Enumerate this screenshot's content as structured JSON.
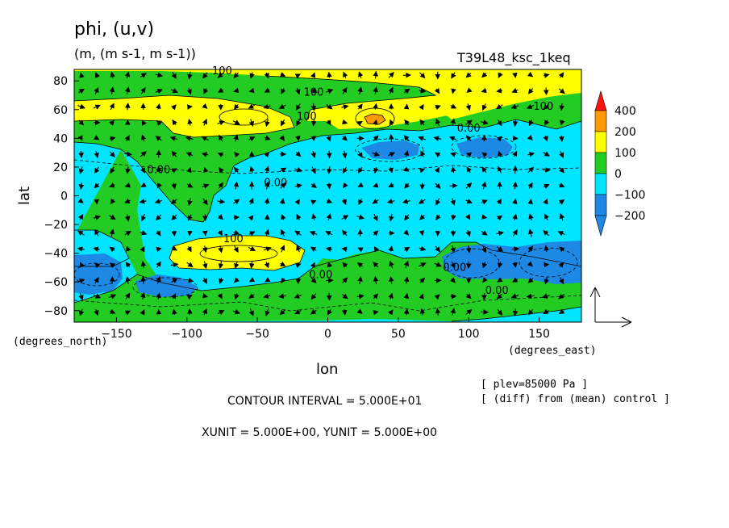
{
  "header": {
    "title": "phi, (u,v)",
    "units": "(m, (m s-1, m s-1))",
    "experiment": "T39L48_ksc_1keq"
  },
  "notes": {
    "plev": "[ plev=85000 Pa ]",
    "diff": "[ (diff) from (mean) control ]",
    "contour_interval": "CONTOUR INTERVAL = 5.000E+01",
    "vector_units": "XUNIT = 5.000E+00, YUNIT = 5.000E+00"
  },
  "colors": {
    "c_m200": "#1e88e5",
    "c_m100": "#00e5ff",
    "c_0": "#22cc22",
    "c_100": "#ffff00",
    "c_200": "#ff9900",
    "c_400": "#ff1111"
  },
  "chart_data": {
    "type": "heatmap",
    "xlabel": "lon",
    "ylabel": "lat",
    "x_units": "(degrees_east)",
    "y_units": "(degrees_north)",
    "xlim": [
      -180,
      180
    ],
    "ylim": [
      -88,
      88
    ],
    "x_ticks": [
      -150,
      -100,
      -50,
      0,
      50,
      100,
      150
    ],
    "y_ticks": [
      80,
      60,
      40,
      20,
      0,
      -20,
      -40,
      -60,
      -80
    ],
    "x_tick_labels": [
      "−150",
      "−100",
      "−50",
      "0",
      "50",
      "100",
      "150"
    ],
    "y_tick_labels": [
      "80",
      "60",
      "40",
      "20",
      "0",
      "−20",
      "−40",
      "−60",
      "−80"
    ],
    "colorbar": {
      "levels": [
        "400",
        "200",
        "100",
        "0",
        "−100",
        "−200"
      ]
    },
    "contour_labels": [
      {
        "text": "100",
        "lon": -75,
        "lat": 87
      },
      {
        "text": "100",
        "lon": -10,
        "lat": 72
      },
      {
        "text": "100",
        "lon": -15,
        "lat": 55
      },
      {
        "text": "100",
        "lon": 153,
        "lat": 62
      },
      {
        "text": "0.00",
        "lon": 100,
        "lat": 47
      },
      {
        "text": "0.00",
        "lon": -120,
        "lat": 18
      },
      {
        "text": "0.00",
        "lon": -37,
        "lat": 9
      },
      {
        "text": "100",
        "lon": -67,
        "lat": -30
      },
      {
        "text": "0.00",
        "lon": -5,
        "lat": -55
      },
      {
        "text": "0.00",
        "lon": 90,
        "lat": -50
      },
      {
        "text": "0.00",
        "lon": 120,
        "lat": -66
      }
    ]
  }
}
